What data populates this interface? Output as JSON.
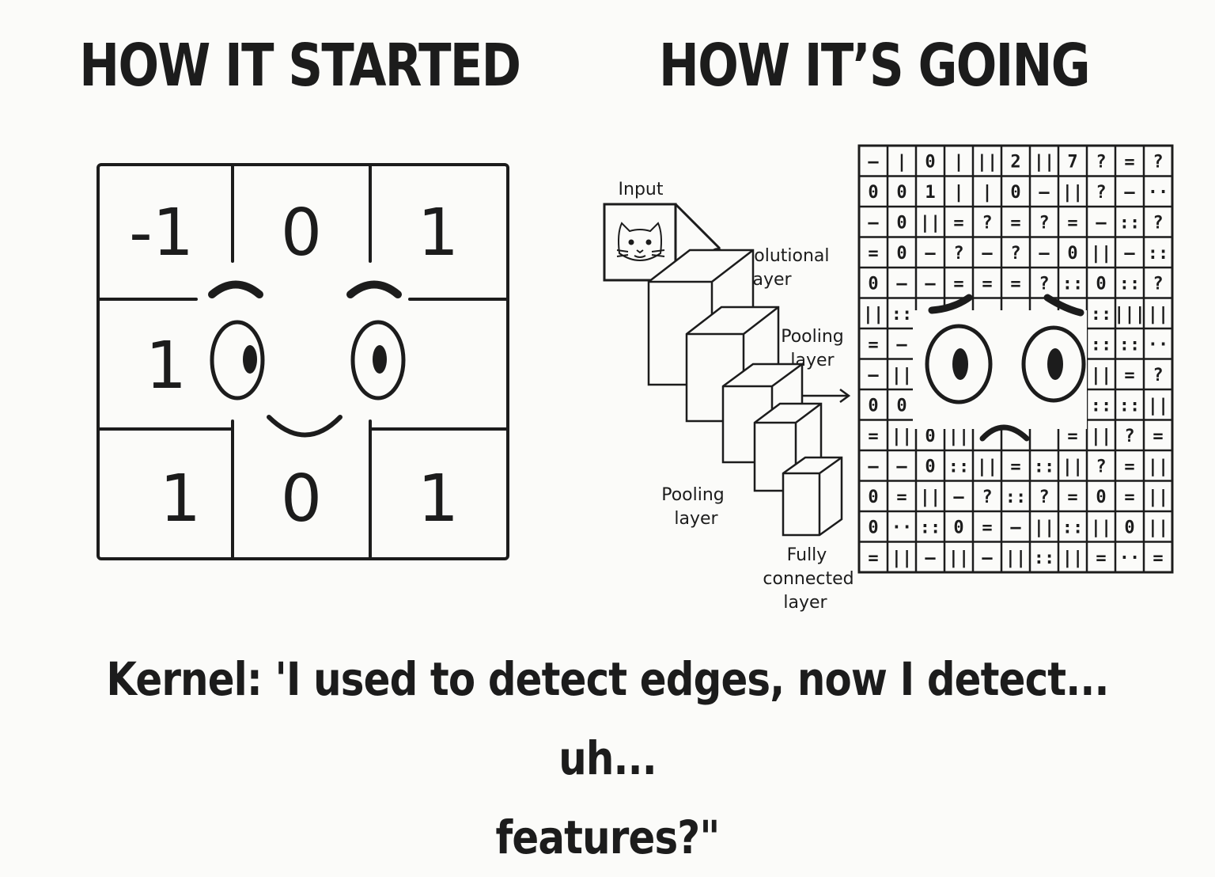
{
  "left": {
    "heading": "HOW IT STARTED",
    "kernel": [
      "-1",
      "0",
      "1",
      "1",
      "",
      "",
      "1",
      "0",
      "1"
    ]
  },
  "right": {
    "heading": "HOW IT’S GOING",
    "labels": {
      "input": "Input",
      "conv": [
        "Convolutional",
        "layer"
      ],
      "pool_upper": [
        "Pooling",
        "layer"
      ],
      "pool_lower": [
        "Pooling",
        "layer"
      ],
      "fc": [
        "Fully",
        "connected",
        "layer"
      ]
    },
    "grid": [
      [
        "–",
        "|",
        "0",
        "|",
        "||",
        "2",
        "||",
        "7",
        "?",
        "=",
        "?"
      ],
      [
        "0",
        "0",
        "1",
        "|",
        "|",
        "0",
        "–",
        "||",
        "?",
        "–",
        "··"
      ],
      [
        "–",
        "0",
        "||",
        "=",
        "?",
        "=",
        "?",
        "=",
        "–",
        "::",
        "?"
      ],
      [
        "=",
        "0",
        "–",
        "?",
        "–",
        "?",
        "–",
        "0",
        "||",
        "–",
        "::"
      ],
      [
        "0",
        "–",
        "–",
        "=",
        "=",
        "=",
        "?",
        "::",
        "0",
        "::",
        "?"
      ],
      [
        "||",
        "::",
        "",
        "",
        "",
        "",
        "",
        "",
        "::",
        "|||",
        "||"
      ],
      [
        "=",
        "–",
        "",
        "",
        "",
        "",
        "",
        "",
        "::",
        "::",
        "··"
      ],
      [
        "–",
        "||",
        "",
        "",
        "",
        "",
        "",
        "",
        "||",
        "=",
        "?"
      ],
      [
        "0",
        "0",
        "",
        "",
        "",
        "",
        "",
        "",
        "::",
        "::",
        "||"
      ],
      [
        "=",
        "||",
        "0",
        "||",
        "",
        "",
        "",
        "=",
        "||",
        "?",
        "="
      ],
      [
        "–",
        "–",
        "0",
        "::",
        "||",
        "=",
        "::",
        "||",
        "?",
        "=",
        "||"
      ],
      [
        "0",
        "=",
        "||",
        "–",
        "?",
        "::",
        "?",
        "=",
        "0",
        "=",
        "||"
      ],
      [
        "0",
        "··",
        "::",
        "0",
        "=",
        "–",
        "||",
        "::",
        "||",
        "0",
        "||"
      ],
      [
        "=",
        "||",
        "–",
        "||",
        "–",
        "||",
        "::",
        "||",
        "=",
        "··",
        "="
      ]
    ]
  },
  "caption": {
    "line1": "Kernel: 'I used to detect edges, now I detect... uh...",
    "line2": "features?\""
  }
}
